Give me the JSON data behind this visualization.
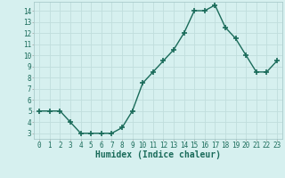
{
  "x": [
    0,
    1,
    2,
    3,
    4,
    5,
    6,
    7,
    8,
    9,
    10,
    11,
    12,
    13,
    14,
    15,
    16,
    17,
    18,
    19,
    20,
    21,
    22,
    23
  ],
  "y": [
    5,
    5,
    5,
    4,
    3,
    3,
    3,
    3,
    3.5,
    5,
    7.5,
    8.5,
    9.5,
    10.5,
    12,
    14,
    14,
    14.5,
    12.5,
    11.5,
    10,
    8.5,
    8.5,
    9.5
  ],
  "line_color": "#1a6b5a",
  "marker": "+",
  "markersize": 4,
  "markeredgewidth": 1.2,
  "linewidth": 1.0,
  "xlabel": "Humidex (Indice chaleur)",
  "xlim": [
    -0.5,
    23.5
  ],
  "ylim": [
    2.5,
    14.8
  ],
  "yticks": [
    3,
    4,
    5,
    6,
    7,
    8,
    9,
    10,
    11,
    12,
    13,
    14
  ],
  "xticks": [
    0,
    1,
    2,
    3,
    4,
    5,
    6,
    7,
    8,
    9,
    10,
    11,
    12,
    13,
    14,
    15,
    16,
    17,
    18,
    19,
    20,
    21,
    22,
    23
  ],
  "xtick_labels": [
    "0",
    "1",
    "2",
    "3",
    "4",
    "5",
    "6",
    "7",
    "8",
    "9",
    "10",
    "11",
    "12",
    "13",
    "14",
    "15",
    "16",
    "17",
    "18",
    "19",
    "20",
    "21",
    "22",
    "23"
  ],
  "background_color": "#d6f0ef",
  "grid_color": "#c0dedd",
  "tick_label_fontsize": 5.5,
  "xlabel_fontsize": 7.0,
  "axis_label_color": "#1a6b5a"
}
